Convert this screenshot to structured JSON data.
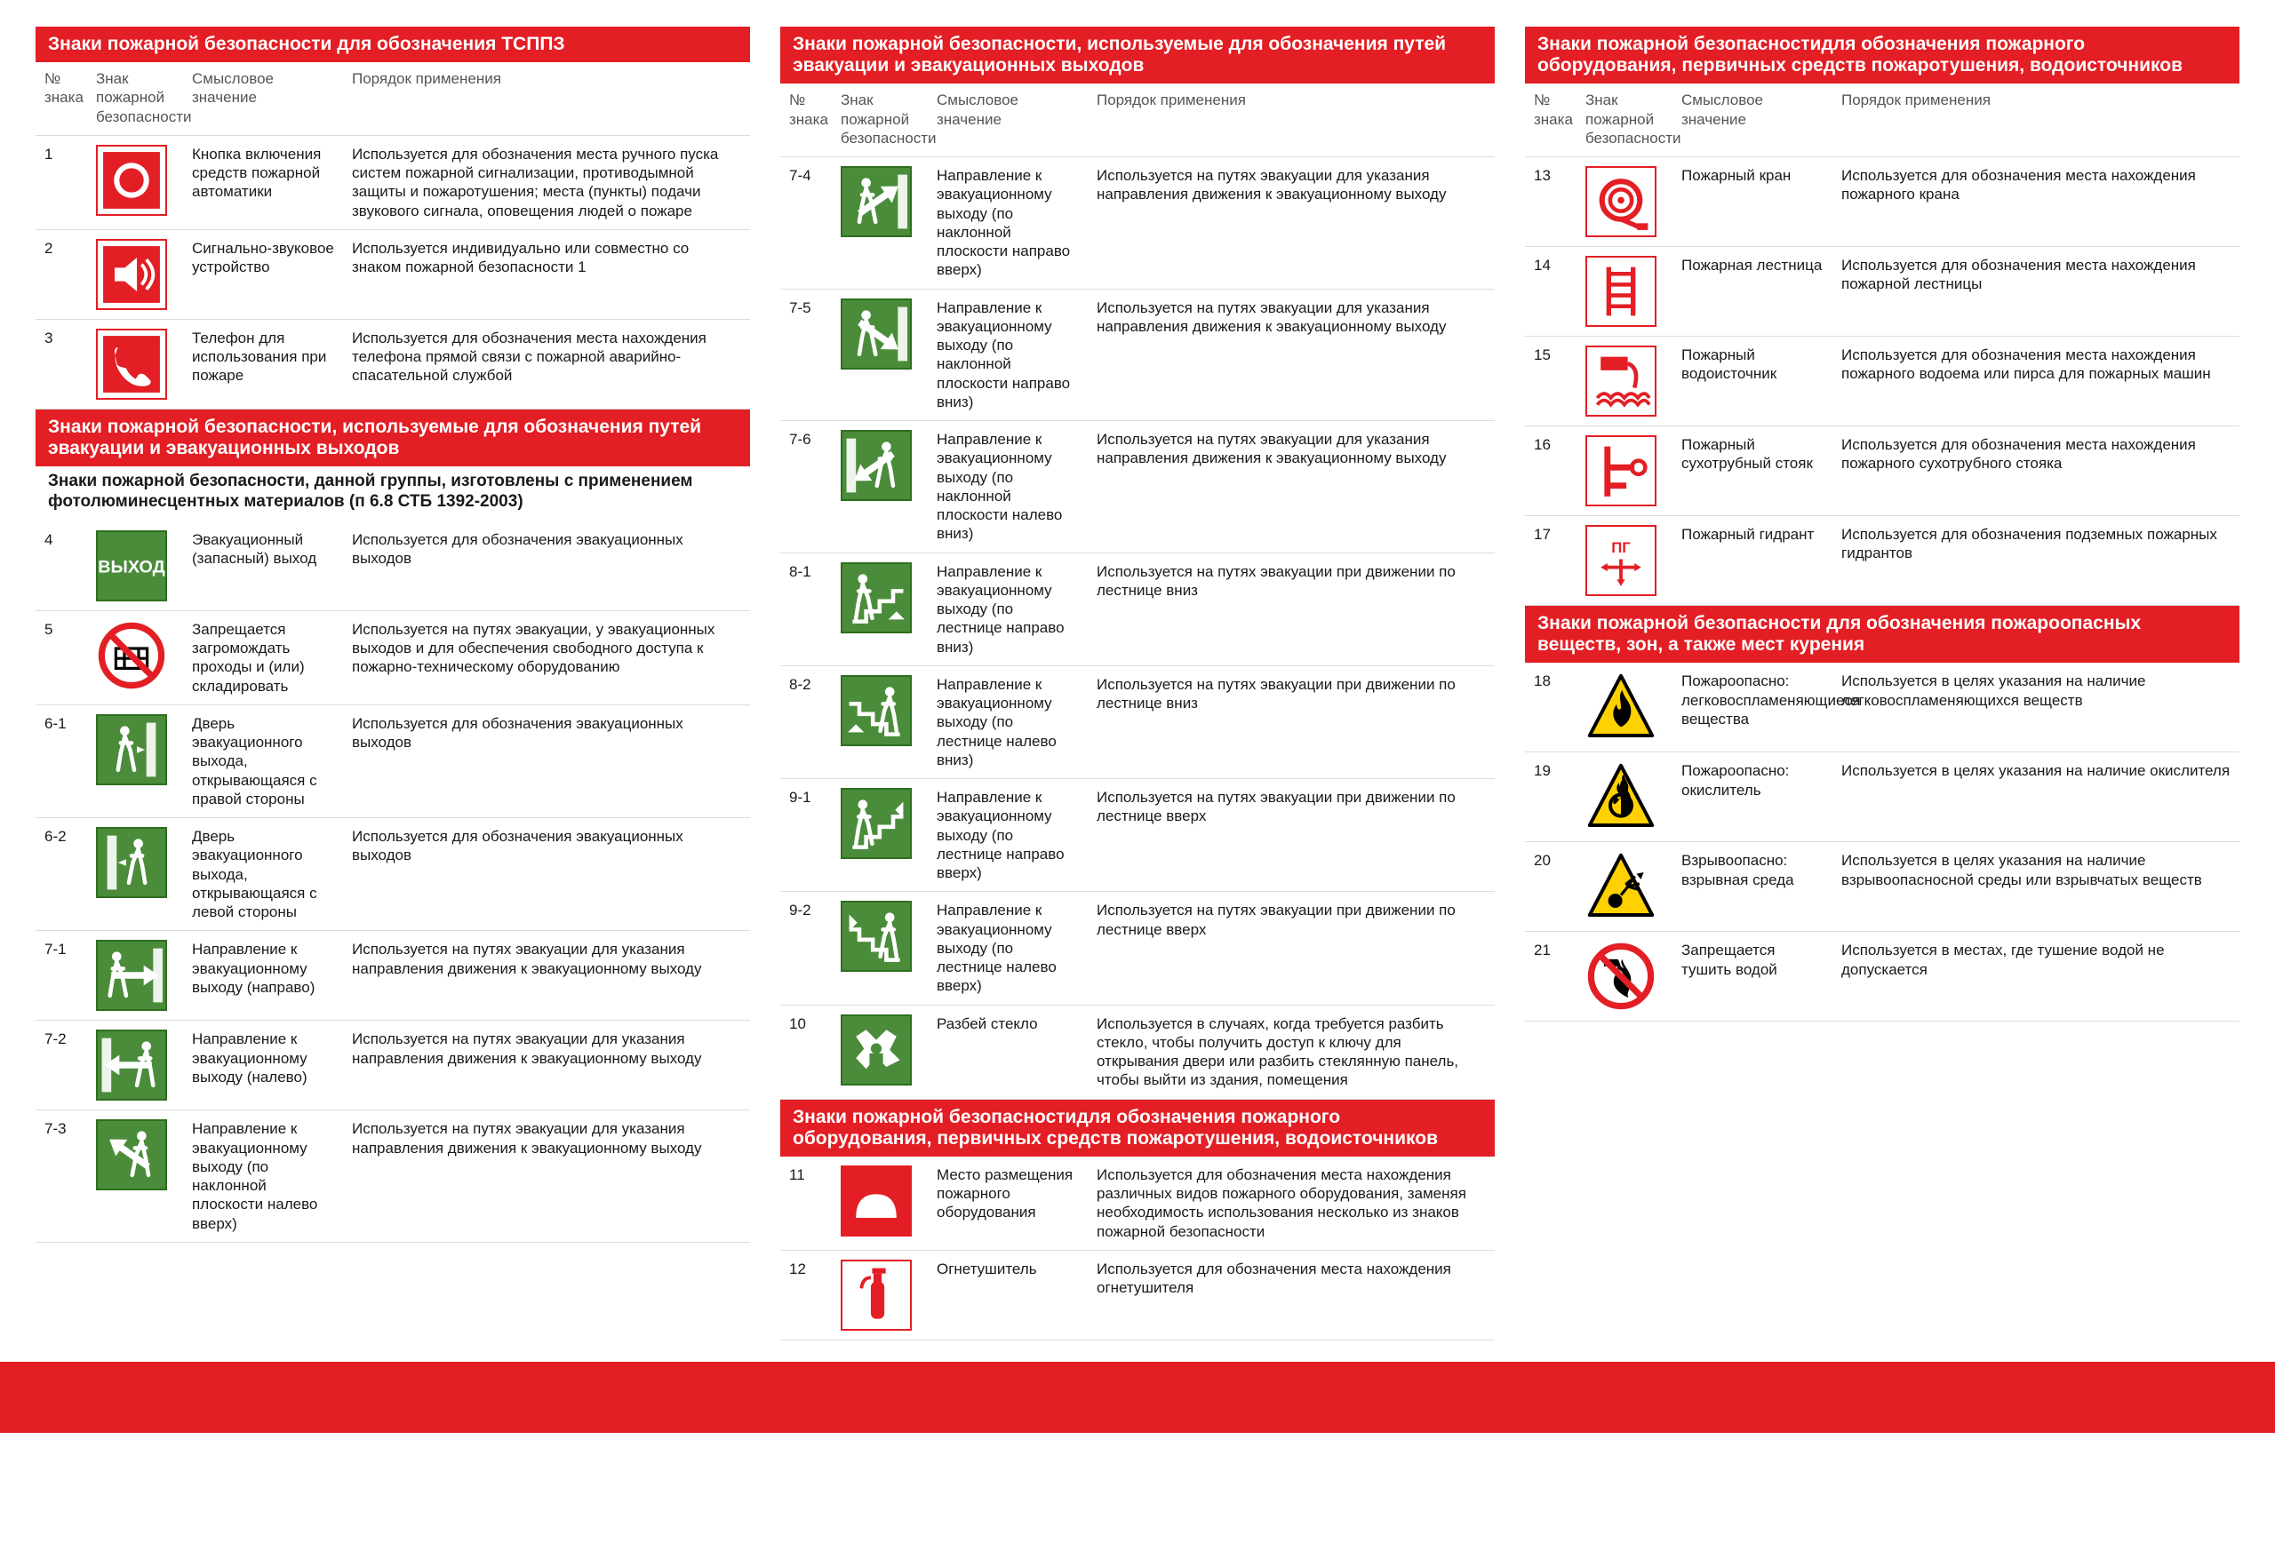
{
  "colors": {
    "red": "#e31e24",
    "green": "#4a8c3a",
    "yellow": "#ffd100",
    "black": "#000000",
    "white": "#ffffff"
  },
  "headers": {
    "num": "№\nзнака",
    "sign": "Знак пожарной\nбезопасности",
    "meaning": "Смысловое\nзначение",
    "usage": "Порядок применения"
  },
  "sections": [
    {
      "title": "Знаки пожарной безопасности\nдля обозначения ТСППЗ",
      "column": 0,
      "rows": [
        {
          "num": "1",
          "icon": "alarm-button",
          "style": "red",
          "meaning": "Кнопка включения средств пожарной автоматики",
          "usage": "Используется для обозначения места ручного пуска систем пожарной сигнализации, противодымной защиты и пожаротушения; места (пункты) подачи звукового сигнала, оповещения людей о пожаре"
        },
        {
          "num": "2",
          "icon": "sounder",
          "style": "red",
          "meaning": "Сигнально-звуковое устройство",
          "usage": "Используется индивидуально или совместно со знаком пожарной безопасности 1"
        },
        {
          "num": "3",
          "icon": "phone",
          "style": "red",
          "meaning": "Телефон для использования при пожаре",
          "usage": "Используется для обозначения места нахождения телефона прямой связи с пожарной аварийно-спасательной службой"
        }
      ]
    },
    {
      "title": "Знаки пожарной безопасности, используемые для обозначения путей эвакуации и эвакуационных выходов",
      "subtitle": "Знаки пожарной безопасности, данной группы, изготовлены с применением фотолюминесцентных материалов (п 6.8 СТБ 1392-2003)",
      "column": 0,
      "noHeader": true,
      "rows": [
        {
          "num": "4",
          "icon": "exit-text",
          "style": "green",
          "meaning": "Эвакуационный (запасный) выход",
          "usage": "Используется для обозначения эвакуационных выходов"
        },
        {
          "num": "5",
          "icon": "no-block",
          "style": "prohib",
          "meaning": "Запрещается загромождать проходы и (или) складировать",
          "usage": "Используется на путях эвакуации, у эвакуационных выходов и для обеспечения свободного доступа к пожарно-техническому оборудованию"
        },
        {
          "num": "6-1",
          "icon": "door-right",
          "style": "green",
          "meaning": "Дверь эвакуационного выхода, открывающаяся с правой стороны",
          "usage": "Используется для обозначения эвакуационных выходов"
        },
        {
          "num": "6-2",
          "icon": "door-left",
          "style": "green",
          "meaning": "Дверь эвакуационного выхода, открывающаяся с левой стороны",
          "usage": "Используется для обозначения эвакуационных выходов"
        },
        {
          "num": "7-1",
          "icon": "arrow-right",
          "style": "green",
          "meaning": "Направление к эвакуационному выходу (направо)",
          "usage": "Используется на путях эвакуации для указания направления движения к эвакуационному выходу"
        },
        {
          "num": "7-2",
          "icon": "arrow-left",
          "style": "green",
          "meaning": "Направление к эвакуационному выходу (налево)",
          "usage": "Используется на путях эвакуации для указания направления движения к эвакуационному выходу"
        },
        {
          "num": "7-3",
          "icon": "arrow-up-left",
          "style": "green",
          "meaning": "Направление к эвакуационному выходу (по наклонной плоскости налево вверх)",
          "usage": "Используется на путях эвакуации для указания направления движения к эвакуационному выходу"
        }
      ]
    },
    {
      "title": "Знаки пожарной безопасности, используемые для обозначения путей эвакуации и эвакуационных выходов",
      "column": 1,
      "rows": [
        {
          "num": "7-4",
          "icon": "arrow-up-right",
          "style": "green",
          "meaning": "Направление к эвакуационному выходу (по наклонной плоскости направо вверх)",
          "usage": "Используется на путях эвакуации для указания направления движения к эвакуационному выходу"
        },
        {
          "num": "7-5",
          "icon": "arrow-down-right",
          "style": "green",
          "meaning": "Направление к эвакуационному выходу (по наклонной плоскости направо вниз)",
          "usage": "Используется на путях эвакуации для указания направления движения к эвакуационному выходу"
        },
        {
          "num": "7-6",
          "icon": "arrow-down-left",
          "style": "green",
          "meaning": "Направление к эвакуационному выходу (по наклонной плоскости налево вниз)",
          "usage": "Используется на путях эвакуации для указания направления движения к эвакуационному выходу"
        },
        {
          "num": "8-1",
          "icon": "stairs-down-right",
          "style": "green",
          "meaning": "Направление к эвакуационному выходу (по лестнице направо вниз)",
          "usage": "Используется на путях эвакуации при движении по лестнице вниз"
        },
        {
          "num": "8-2",
          "icon": "stairs-down-left",
          "style": "green",
          "meaning": "Направление к эвакуационному выходу (по лестнице налево вниз)",
          "usage": "Используется на путях эвакуации при движении по лестнице вниз"
        },
        {
          "num": "9-1",
          "icon": "stairs-up-right",
          "style": "green",
          "meaning": "Направление к эвакуационному выходу (по лестнице направо вверх)",
          "usage": "Используется на путях эвакуации при движении по лестнице вверх"
        },
        {
          "num": "9-2",
          "icon": "stairs-up-left",
          "style": "green",
          "meaning": "Направление к эвакуационному выходу (по лестнице налево вверх)",
          "usage": "Используется на путях эвакуации при движении по лестнице вверх"
        },
        {
          "num": "10",
          "icon": "break-glass",
          "style": "green",
          "meaning": "Разбей стекло",
          "usage": "Используется в случаях, когда требуется разбить стекло, чтобы получить доступ к ключу для открывания двери или разбить стеклянную панель, чтобы выйти из здания, помещения"
        }
      ]
    },
    {
      "title": "Знаки пожарной безопасностидля обозначения пожарного оборудования, первичных средств пожаротушения, водоисточников",
      "column": 1,
      "noHeader": true,
      "rows": [
        {
          "num": "11",
          "icon": "equip-place",
          "style": "red-fill",
          "meaning": "Место размещения пожарного оборудования",
          "usage": "Используется для обозначения места нахождения различных видов пожарного оборудования, заменяя необходимость использования несколько из знаков пожарной безопасности"
        },
        {
          "num": "12",
          "icon": "extinguisher",
          "style": "red",
          "meaning": "Огнетушитель",
          "usage": "Используется для обозначения места нахождения огнетушителя"
        }
      ]
    },
    {
      "title": "Знаки пожарной безопасностидля обозначения пожарного оборудования, первичных средств пожаротушения, водоисточников",
      "column": 2,
      "rows": [
        {
          "num": "13",
          "icon": "fire-hose",
          "style": "red",
          "meaning": "Пожарный кран",
          "usage": "Используется для обозначения места нахождения пожарного крана"
        },
        {
          "num": "14",
          "icon": "fire-ladder",
          "style": "red",
          "meaning": "Пожарная лестница",
          "usage": "Используется для обозначения места нахождения пожарной лестницы"
        },
        {
          "num": "15",
          "icon": "water-source",
          "style": "red",
          "meaning": "Пожарный водоисточник",
          "usage": "Используется для обозначения места нахождения пожарного водоема или пирса для пожарных машин"
        },
        {
          "num": "16",
          "icon": "dry-riser",
          "style": "red",
          "meaning": "Пожарный сухотрубный стояк",
          "usage": "Используется для обозначения места нахождения пожарного сухотрубного стояка"
        },
        {
          "num": "17",
          "icon": "hydrant",
          "style": "red",
          "meaning": "Пожарный гидрант",
          "usage": "Используется для обозначения подземных пожарных гидрантов"
        }
      ]
    },
    {
      "title": "Знаки пожарной безопасности для обозначения пожароопасных веществ, зон, а также мест курения",
      "column": 2,
      "noHeader": true,
      "rows": [
        {
          "num": "18",
          "icon": "flammable",
          "style": "yellow",
          "meaning": "Пожароопасно: легковоспламеняющиеся вещества",
          "usage": "Используется в целях указания на наличие легковоспламеняющихся веществ"
        },
        {
          "num": "19",
          "icon": "oxidizer",
          "style": "yellow",
          "meaning": "Пожароопасно: окислитель",
          "usage": "Используется в целях указания на наличие окислителя"
        },
        {
          "num": "20",
          "icon": "explosive",
          "style": "yellow",
          "meaning": "Взрывоопасно: взрывная среда",
          "usage": "Используется в целях указания на наличие взрывоопасносной среды или взрывчатых веществ"
        },
        {
          "num": "21",
          "icon": "no-water",
          "style": "prohib",
          "meaning": "Запрещается тушить водой",
          "usage": "Используется в местах, где тушение водой не допускается"
        }
      ]
    }
  ]
}
